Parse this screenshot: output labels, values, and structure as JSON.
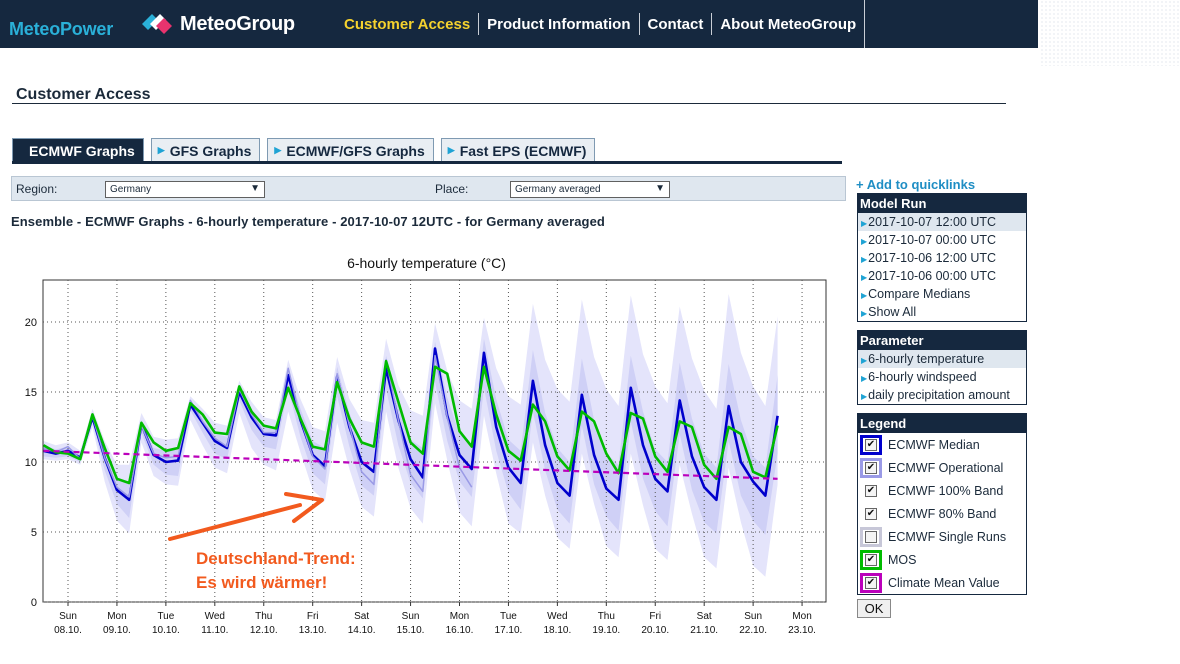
{
  "header": {
    "brand_left": "MeteoPower",
    "brand_right": "MeteoGroup",
    "nav": [
      "Customer Access",
      "Product Information",
      "Contact",
      "About MeteoGroup"
    ],
    "active_nav": 0
  },
  "page": {
    "title": "Customer Access",
    "tabs": [
      "ECMWF Graphs",
      "GFS Graphs",
      "ECMWF/GFS Graphs",
      "Fast EPS (ECMWF)"
    ],
    "active_tab": 0,
    "filters": {
      "region_label": "Region:",
      "region_value": "Germany",
      "place_label": "Place:",
      "place_value": "Germany averaged"
    },
    "caption": "Ensemble - ECMWF Graphs - 6-hourly temperature - 2017-10-07 12UTC - for Germany averaged"
  },
  "sidebar": {
    "quicklink": "+ Add to quicklinks",
    "model_run": {
      "title": "Model Run",
      "items": [
        "2017-10-07 12:00 UTC",
        "2017-10-07 00:00 UTC",
        "2017-10-06 12:00 UTC",
        "2017-10-06 00:00 UTC",
        "Compare Medians",
        "Show All"
      ],
      "selected": 0
    },
    "parameter": {
      "title": "Parameter",
      "items": [
        "6-hourly temperature",
        "6-hourly windspeed",
        "daily precipitation amount"
      ],
      "selected": 0
    },
    "legend": {
      "title": "Legend",
      "items": [
        {
          "label": "ECMWF Median",
          "color": "#0000cc",
          "checked": true
        },
        {
          "label": "ECMWF Operational",
          "color": "#9a9ae6",
          "checked": true
        },
        {
          "label": "ECMWF 100% Band",
          "color": "#ffffff",
          "checked": true
        },
        {
          "label": "ECMWF 80% Band",
          "color": "#ffffff",
          "checked": true
        },
        {
          "label": "ECMWF Single Runs",
          "color": "#c7c7d8",
          "checked": false
        },
        {
          "label": "MOS",
          "color": "#00bb00",
          "checked": true
        },
        {
          "label": "Climate Mean Value",
          "color": "#bb00bb",
          "checked": true
        }
      ],
      "ok_label": "OK"
    }
  },
  "chart_data": {
    "type": "line",
    "title": "6-hourly temperature (°C)",
    "ylim": [
      0,
      23
    ],
    "yticks": [
      0,
      5,
      10,
      15,
      20
    ],
    "grid": true,
    "x_ticks": [
      {
        "day": "Sun",
        "date": "08.10."
      },
      {
        "day": "Mon",
        "date": "09.10."
      },
      {
        "day": "Tue",
        "date": "10.10."
      },
      {
        "day": "Wed",
        "date": "11.10."
      },
      {
        "day": "Thu",
        "date": "12.10."
      },
      {
        "day": "Fri",
        "date": "13.10."
      },
      {
        "day": "Sat",
        "date": "14.10."
      },
      {
        "day": "Sun",
        "date": "15.10."
      },
      {
        "day": "Mon",
        "date": "16.10."
      },
      {
        "day": "Tue",
        "date": "17.10."
      },
      {
        "day": "Wed",
        "date": "18.10."
      },
      {
        "day": "Thu",
        "date": "19.10."
      },
      {
        "day": "Fri",
        "date": "20.10."
      },
      {
        "day": "Sat",
        "date": "21.10."
      },
      {
        "day": "Sun",
        "date": "22.10."
      },
      {
        "day": "Mon",
        "date": "23.10."
      }
    ],
    "steps_per_day": 4,
    "start_offset_days": -0.5,
    "series": [
      {
        "name": "ECMWF Median",
        "color": "#0000cc",
        "values": [
          10.8,
          10.6,
          10.8,
          10.3,
          13.2,
          10.3,
          8.0,
          7.3,
          12.7,
          10.5,
          10.0,
          10.1,
          14.1,
          12.8,
          11.5,
          11.0,
          15.0,
          13.2,
          12.0,
          11.9,
          16.2,
          13.0,
          10.5,
          9.7,
          16.1,
          12.5,
          10.0,
          9.3,
          16.7,
          13.0,
          10.2,
          8.9,
          18.1,
          13.3,
          10.5,
          9.5,
          17.8,
          12.5,
          9.6,
          8.5,
          15.8,
          11.2,
          8.5,
          7.6,
          14.8,
          10.5,
          8.1,
          7.3,
          15.3,
          11.2,
          8.8,
          7.9,
          14.4,
          10.4,
          8.2,
          7.3,
          14.0,
          10.0,
          8.6,
          7.6,
          13.3
        ]
      },
      {
        "name": "ECMWF Operational",
        "color": "#9a9ae6",
        "values": [
          11.0,
          10.7,
          11.1,
          10.2,
          13.3,
          10.3,
          8.2,
          7.5,
          12.6,
          10.6,
          10.3,
          10.4,
          14.4,
          12.9,
          11.7,
          11.1,
          15.2,
          13.4,
          12.1,
          12.1,
          16.7,
          13.1,
          10.4,
          9.5,
          16.3,
          12.6,
          9.3,
          8.4,
          17.3,
          13.0,
          9.1,
          7.9,
          17.6,
          13.2,
          9.6,
          8.2
        ]
      },
      {
        "name": "MOS",
        "color": "#00bb00",
        "values": [
          11.2,
          10.7,
          10.6,
          10.2,
          13.4,
          11.0,
          8.8,
          8.5,
          12.8,
          11.4,
          10.8,
          11.0,
          14.2,
          13.4,
          12.1,
          12.0,
          15.4,
          13.6,
          12.6,
          12.4,
          15.3,
          13.1,
          11.1,
          10.9,
          15.7,
          13.1,
          11.4,
          11.1,
          17.2,
          14.3,
          11.4,
          10.6,
          16.8,
          16.3,
          12.2,
          11.1,
          16.8,
          13.4,
          10.8,
          10.1,
          14.1,
          12.9,
          10.4,
          9.4,
          13.6,
          12.9,
          10.6,
          9.2,
          13.5,
          13.1,
          10.4,
          9.3,
          12.9,
          12.5,
          9.8,
          8.8,
          12.5,
          12.0,
          9.3,
          8.9,
          12.6
        ]
      },
      {
        "name": "Climate Mean Value",
        "color": "#bb00bb",
        "values": [
          10.8,
          8.8
        ]
      }
    ],
    "band_100": {
      "upper": [
        11.5,
        11.2,
        11.4,
        10.8,
        13.8,
        11.5,
        9.8,
        9.8,
        13.5,
        11.8,
        11.6,
        11.7,
        14.7,
        13.8,
        12.8,
        12.6,
        15.8,
        14.3,
        13.2,
        13.0,
        17.3,
        14.5,
        12.5,
        12.2,
        17.5,
        14.5,
        13.0,
        12.8,
        18.8,
        15.5,
        13.7,
        13.3,
        19.9,
        16.5,
        14.4,
        13.8,
        20.3,
        16.7,
        14.7,
        14.1,
        21.3,
        17.3,
        15.2,
        14.3,
        21.6,
        17.5,
        15.2,
        14.0,
        21.9,
        17.7,
        15.4,
        14.2,
        21.1,
        17.4,
        15.1,
        13.8,
        22.0,
        17.8,
        15.4,
        14.0,
        20.4
      ],
      "lower": [
        10.2,
        10.1,
        10.2,
        9.8,
        12.5,
        8.6,
        5.8,
        4.9,
        11.4,
        9.0,
        8.4,
        8.3,
        13.0,
        11.2,
        9.6,
        9.2,
        13.5,
        11.0,
        9.8,
        9.4,
        13.6,
        10.7,
        8.0,
        7.2,
        12.8,
        9.5,
        6.8,
        6.1,
        13.6,
        9.6,
        6.7,
        5.6,
        14.2,
        10.1,
        6.4,
        5.4,
        13.3,
        9.2,
        5.6,
        4.9,
        11.4,
        7.6,
        4.6,
        3.8,
        10.6,
        7.0,
        4.0,
        3.2,
        10.6,
        6.9,
        3.8,
        3.0,
        9.8,
        6.3,
        3.2,
        2.4,
        9.6,
        5.7,
        2.6,
        1.8,
        8.4
      ]
    },
    "band_80": {
      "upper": [
        11.2,
        10.9,
        11.1,
        10.5,
        13.5,
        11.0,
        8.9,
        8.6,
        13.0,
        11.0,
        10.8,
        10.9,
        14.4,
        13.2,
        12.0,
        11.8,
        15.3,
        13.8,
        12.6,
        12.4,
        16.6,
        13.8,
        11.5,
        11.0,
        16.8,
        13.5,
        11.4,
        11.0,
        17.6,
        14.2,
        11.6,
        11.0,
        18.6,
        14.6,
        12.0,
        11.3,
        18.8,
        14.5,
        11.6,
        10.8,
        18.0,
        13.5,
        11.0,
        10.0,
        17.4,
        13.0,
        10.6,
        9.8,
        17.6,
        13.6,
        10.9,
        10.0,
        17.1,
        13.1,
        10.6,
        9.6,
        17.0,
        13.0,
        10.4,
        9.6,
        16.2
      ],
      "lower": [
        10.4,
        10.3,
        10.4,
        10.0,
        12.9,
        9.4,
        7.0,
        6.0,
        12.1,
        9.8,
        9.1,
        9.0,
        13.7,
        12.1,
        10.6,
        10.2,
        14.4,
        12.3,
        11.1,
        10.9,
        15.2,
        11.8,
        9.2,
        8.4,
        14.7,
        11.1,
        8.3,
        7.6,
        15.2,
        11.2,
        8.5,
        7.4,
        15.7,
        11.5,
        8.6,
        7.5,
        15.3,
        10.8,
        7.8,
        6.6,
        13.6,
        9.4,
        6.6,
        5.6,
        12.6,
        8.4,
        6.1,
        5.1,
        12.9,
        8.8,
        6.5,
        5.4,
        12.0,
        8.0,
        5.7,
        4.9,
        11.5,
        7.6,
        5.8,
        4.8,
        10.6
      ]
    },
    "annotation": {
      "line1": "Deutschland-Trend:",
      "line2": "Es wird wärmer!",
      "color": "#f25a1e"
    }
  }
}
